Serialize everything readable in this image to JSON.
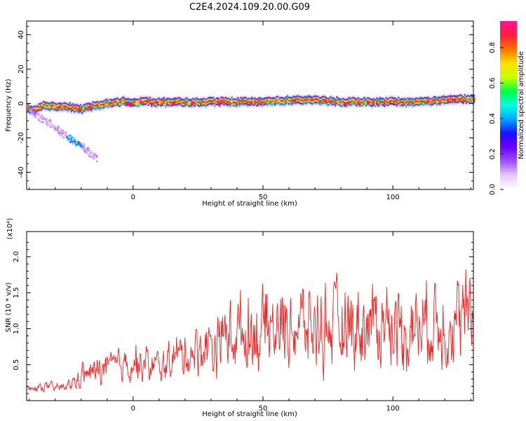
{
  "title": "C2E4.2024.109.20.00.G09",
  "colors": {
    "snr_line": "#ee2222",
    "axis": "#000000"
  },
  "chart_data": [
    {
      "type": "heatmap",
      "xlabel": "Height of straight line (km)",
      "ylabel": "Frequency (Hz)",
      "xlim": [
        -41,
        131
      ],
      "ylim": [
        -50,
        48
      ],
      "x_ticks": [
        0,
        50,
        100
      ],
      "y_ticks": [
        -40,
        -20,
        0,
        20,
        40
      ],
      "colorbar": {
        "label": "Normalized spectral amplitude",
        "range": [
          0.0,
          0.95
        ],
        "ticks": [
          0.0,
          0.2,
          0.4,
          0.6,
          0.8
        ],
        "colormap": [
          "#ffffff",
          "#e8c8ff",
          "#a050ff",
          "#6a00ff",
          "#1a10ff",
          "#00a8ff",
          "#00ffe0",
          "#00ff40",
          "#c8ff00",
          "#ffe000",
          "#ff7000",
          "#ff1a40",
          "#ff1493"
        ]
      },
      "ridge_center_hz": {
        "x": [
          -41,
          -38,
          -35,
          -30,
          -25,
          -20,
          -15,
          -10,
          -5,
          0,
          10,
          20,
          30,
          40,
          50,
          60,
          70,
          80,
          90,
          100,
          110,
          120,
          131
        ],
        "y": [
          -3,
          -4,
          -1,
          -2,
          -2,
          -3,
          -1,
          0,
          1,
          1,
          1,
          1,
          1,
          1,
          1,
          2,
          2,
          1,
          1,
          1,
          1,
          2,
          3
        ]
      },
      "side_branch": {
        "x": [
          -40,
          -37,
          -34,
          -31,
          -28,
          -25,
          -22,
          -19,
          -16,
          -14
        ],
        "y": [
          -4,
          -8,
          -10,
          -13,
          -17,
          -20,
          -23,
          -26,
          -30,
          -32
        ]
      }
    },
    {
      "type": "line",
      "xlabel": "Height of straight line (km)",
      "ylabel": "SNR (10 * v/v)",
      "y_multiplier": "(x10⁴)",
      "xlim": [
        -41,
        131
      ],
      "ylim": [
        0.0,
        2.35
      ],
      "x_ticks": [
        0,
        50,
        100
      ],
      "y_ticks": [
        0.5,
        1.0,
        1.5,
        2.0
      ],
      "series": [
        {
          "x": [
            -41,
            -35,
            -30,
            -25,
            -20,
            -15,
            -10,
            -5,
            0,
            5,
            10,
            15,
            20,
            25,
            30,
            35,
            40,
            45,
            50,
            55,
            60,
            65,
            70,
            75,
            80,
            85,
            90,
            95,
            100,
            105,
            110,
            115,
            120,
            125,
            131
          ],
          "y": [
            0.15,
            0.2,
            0.18,
            0.2,
            0.35,
            0.4,
            0.45,
            0.5,
            0.55,
            0.5,
            0.45,
            0.6,
            0.65,
            0.7,
            0.8,
            0.9,
            0.95,
            0.95,
            1.0,
            1.0,
            1.05,
            1.05,
            1.0,
            1.05,
            1.0,
            1.05,
            1.05,
            1.1,
            1.05,
            1.0,
            1.05,
            1.1,
            1.1,
            1.1,
            1.1
          ],
          "amplitude": [
            0.08,
            0.1,
            0.1,
            0.12,
            0.25,
            0.3,
            0.35,
            0.35,
            0.45,
            0.4,
            0.35,
            0.45,
            0.5,
            0.55,
            0.65,
            0.75,
            0.8,
            0.85,
            0.9,
            0.9,
            0.9,
            0.9,
            0.9,
            0.9,
            0.9,
            0.9,
            0.9,
            0.95,
            0.9,
            0.9,
            0.9,
            0.95,
            0.95,
            1.0,
            1.0
          ]
        }
      ]
    }
  ]
}
